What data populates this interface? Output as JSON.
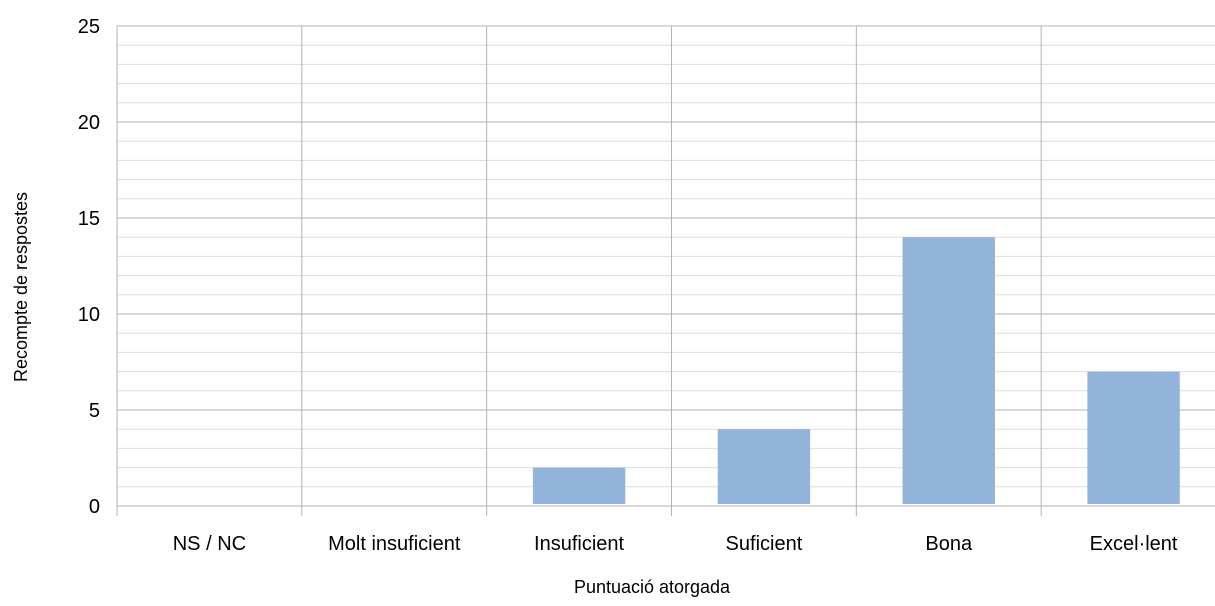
{
  "chart_data": {
    "type": "bar",
    "title": "",
    "xlabel": "Puntuació atorgada",
    "ylabel": "Recompte de respostes",
    "categories": [
      "NS / NC",
      "Molt insuficient",
      "Insuficient",
      "Suficient",
      "Bona",
      "Excel·lent"
    ],
    "values": [
      0,
      0,
      2,
      4,
      14,
      7
    ],
    "ylim": [
      0,
      25
    ],
    "yticks": [
      "0",
      "5",
      "10",
      "15",
      "20",
      "25"
    ],
    "major_tick_step": 5,
    "minor_tick_step": 1,
    "grid": true,
    "legend": "none",
    "colors": {
      "bar": "#92b4da",
      "major_grid": "#b3b3b3",
      "minor_grid": "#dddddd",
      "axis": "#b3b3b3"
    }
  }
}
